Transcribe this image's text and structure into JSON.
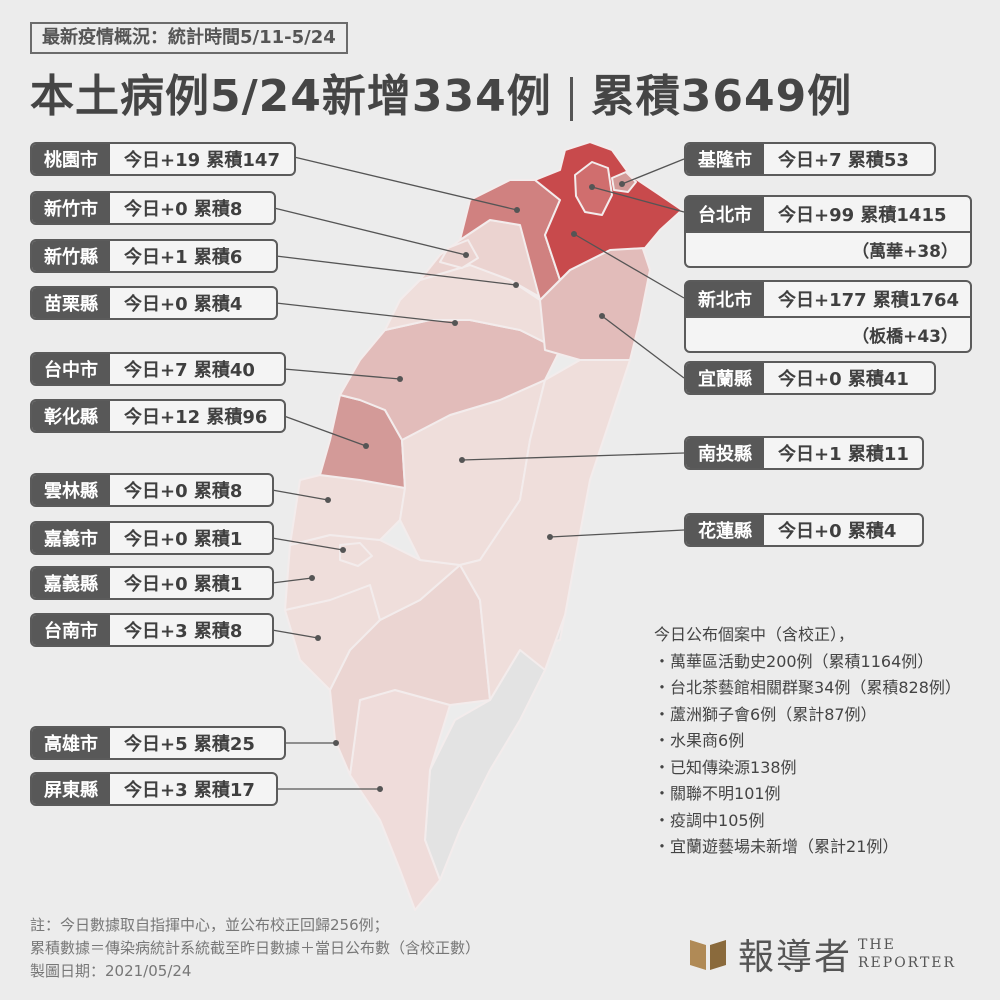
{
  "header": {
    "subtitle": "最新疫情概況：統計時間5/11-5/24",
    "title_part1": "本土病例5/24新增334例",
    "title_part2": "累積3649例"
  },
  "regions": {
    "taoyuan": {
      "name": "桃園市",
      "stats": "今日+19  累積147"
    },
    "hsinchu_city": {
      "name": "新竹市",
      "stats": "今日+0  累積8"
    },
    "hsinchu_county": {
      "name": "新竹縣",
      "stats": "今日+1  累積6"
    },
    "miaoli": {
      "name": "苗栗縣",
      "stats": "今日+0  累積4"
    },
    "taichung": {
      "name": "台中市",
      "stats": "今日+7  累積40"
    },
    "changhua": {
      "name": "彰化縣",
      "stats": "今日+12  累積96"
    },
    "yunlin": {
      "name": "雲林縣",
      "stats": "今日+0 累積8"
    },
    "chiayi_city": {
      "name": "嘉義市",
      "stats": "今日+0 累積1"
    },
    "chiayi_county": {
      "name": "嘉義縣",
      "stats": "今日+0 累積1"
    },
    "tainan": {
      "name": "台南市",
      "stats": "今日+3  累積8"
    },
    "kaohsiung": {
      "name": "高雄市",
      "stats": "今日+5  累積25"
    },
    "pingtung": {
      "name": "屏東縣",
      "stats": "今日+3  累積17"
    },
    "keelung": {
      "name": "基隆市",
      "stats": "今日+7  累積53"
    },
    "taipei": {
      "name": "台北市",
      "stats": "今日+99    累積1415",
      "sub": "（萬華+38）"
    },
    "new_taipei": {
      "name": "新北市",
      "stats": "今日+177  累積1764",
      "sub": "（板橋+43）"
    },
    "yilan": {
      "name": "宜蘭縣",
      "stats": "今日+0  累積41"
    },
    "nantou": {
      "name": "南投縣",
      "stats": "今日+1  累積11"
    },
    "hualien": {
      "name": "花蓮縣",
      "stats": "今日+0  累積4"
    }
  },
  "notes": {
    "heading": "今日公布個案中（含校正），",
    "items": [
      "萬華區活動史200例（累積1164例）",
      "台北茶藝館相關群聚34例（累積828例）",
      "蘆洲獅子會6例（累計87例）",
      "水果商6例",
      "已知傳染源138例",
      "關聯不明101例",
      "疫調中105例",
      "宜蘭遊藝場未新增（累計21例）"
    ]
  },
  "footer": {
    "line1": "註：今日數據取自指揮中心，並公布校正回歸256例；",
    "line2": "累積數據＝傳染病統計系統截至昨日數據＋當日公布數（含校正數）",
    "line3": "製圖日期：2021/05/24"
  },
  "logo": {
    "zh": "報導者",
    "en1": "THE",
    "en2": "REPORTER"
  },
  "colors": {
    "darkest": "#c84a4c",
    "dark": "#d06e6e",
    "mid": "#d39a98",
    "light": "#e2bcba",
    "lighter": "#ebd0cd",
    "lightest": "#efdedb",
    "grey": "#e3e3e3",
    "box_name_bg": "#585858"
  }
}
